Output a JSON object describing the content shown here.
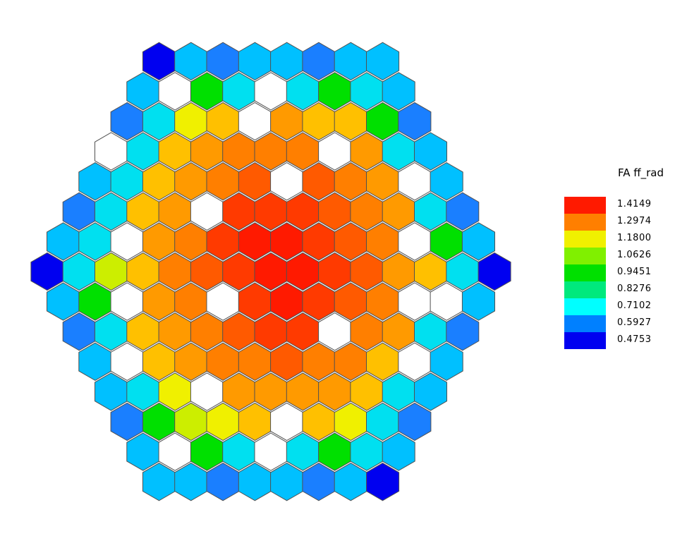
{
  "legend": {
    "title": "FA ff_rad",
    "ranges": [
      {
        "label": "1.4149",
        "color": "#ff1a00"
      },
      {
        "label": "1.2974",
        "color": "#ff7f00"
      },
      {
        "label": "1.1800",
        "color": "#f0f000"
      },
      {
        "label": "1.0626",
        "color": "#80f000"
      },
      {
        "label": "0.9451",
        "color": "#00e000"
      },
      {
        "label": "0.8276",
        "color": "#00e97d"
      },
      {
        "label": "0.7102",
        "color": "#00ffff"
      },
      {
        "label": "0.5927",
        "color": "#0080ff"
      },
      {
        "label": "0.4753",
        "color": "#0000f0"
      }
    ]
  },
  "chart_data": {
    "type": "heatmap",
    "layout": "hexagonal fuel-assembly core map, pointy-top hexagons, 163 positions (8 rings around center)",
    "value_name": "FA ff_rad",
    "empty_positions_color": "#ffffff",
    "rows": [
      {
        "row": 0,
        "cells": [
          "#0000f0"
        ]
      },
      {
        "row": 1,
        "cells": [
          "#1060f0",
          "#00c0ff",
          "#00c0ff",
          "#1060f0"
        ]
      },
      {
        "row": 2,
        "cells": [
          "#1060f0",
          "#00e0f0",
          "#00e97d",
          "#00e0f0",
          "#1060f0"
        ]
      },
      {
        "row": 3,
        "cells": [
          "#1060f0",
          "#00c0ff",
          "#00e000",
          "#00e000",
          "#00c0ff",
          "#1060f0"
        ]
      },
      {
        "row": 4,
        "cells": [
          "#00e0f0",
          "#empty",
          "#ccee00",
          "#empty",
          "#00e0f0"
        ]
      },
      {
        "row": 5,
        "cells": [
          "#00e0f0",
          "#00e000",
          "#ffd000",
          "#ffd000",
          "#00e000",
          "#00e0f0"
        ]
      },
      {
        "row": 6,
        "cells": [
          "#00c0ff",
          "#empty",
          "#ffc000",
          "#ccee00",
          "#ffc000",
          "#empty",
          "#00c0ff"
        ]
      },
      {
        "row": 7,
        "cells": [
          "#0000f0",
          "#00e000",
          "#ffc000",
          "#f0f000",
          "#f0f000",
          "#ffc000",
          "#00e000",
          "#0000f0"
        ]
      },
      {
        "row": 8,
        "cells": [
          "#00e97d",
          "#ffc000",
          "#ffc000",
          "#ff9000",
          "#ffc000",
          "#ffc000",
          "#00e97d"
        ]
      },
      {
        "row": 9,
        "cells": [
          "#00c0ff",
          "#ccee00",
          "#f0f000",
          "#ff8000",
          "#ff6000",
          "#ff8000",
          "#f0f000",
          "#ccee00",
          "#00c0ff"
        ]
      },
      {
        "row": 10,
        "cells": [
          "#00e000",
          "#ffd000",
          "#ff9000",
          "#ff6000",
          "#ff6000",
          "#ff9000",
          "#a0f000",
          "#00e000"
        ]
      },
      {
        "row": 11,
        "cells": [
          "#00e0f0",
          "#ffc000",
          "#ff8000",
          "#empty",
          "#ff5000",
          "#ff9000",
          "#ffd000",
          "#00e0f0"
        ]
      }
    ],
    "note": "Cell colors encode the FA ff_rad bin of each assembly per the legend; white positions have no value."
  }
}
